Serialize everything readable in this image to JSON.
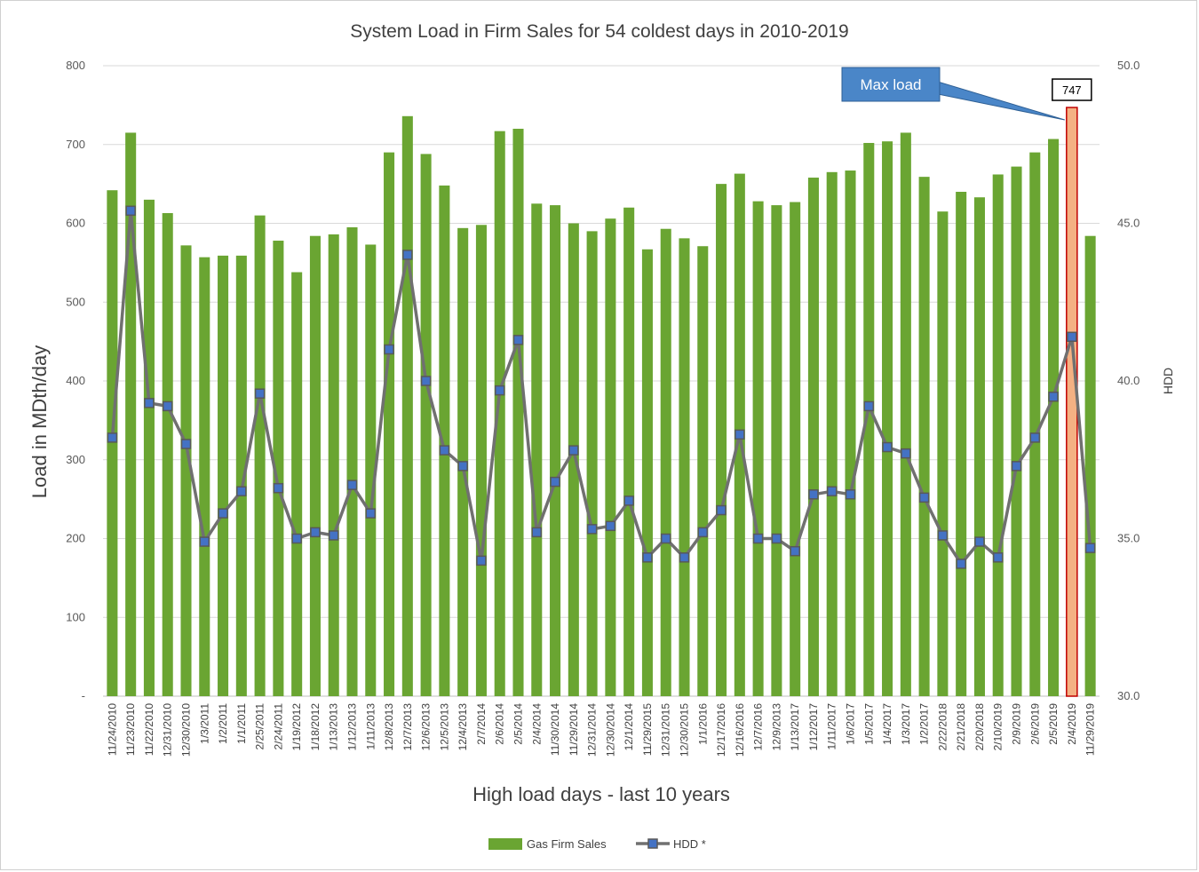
{
  "chart_data": {
    "type": "bar",
    "title": "System Load in Firm Sales for 54 coldest days in 2010-2019",
    "xlabel": "High load days - last 10 years",
    "ylabel": "Load in MDth/day",
    "y2label": "HDD",
    "ylim": [
      0,
      800
    ],
    "y2lim": [
      30.0,
      50.0
    ],
    "y_ticks": [
      "-",
      "100",
      "200",
      "300",
      "400",
      "500",
      "600",
      "700",
      "800"
    ],
    "y2_ticks": [
      "30.0",
      "35.0",
      "40.0",
      "45.0",
      "50.0"
    ],
    "grid": true,
    "legend_position": "bottom",
    "categories": [
      "11/24/2010",
      "11/23/2010",
      "11/22/2010",
      "12/31/2010",
      "12/30/2010",
      "1/3/2011",
      "1/2/2011",
      "1/1/2011",
      "2/25/2011",
      "2/24/2011",
      "1/19/2012",
      "1/18/2012",
      "1/13/2013",
      "1/12/2013",
      "1/11/2013",
      "12/8/2013",
      "12/7/2013",
      "12/6/2013",
      "12/5/2013",
      "12/4/2013",
      "2/7/2014",
      "2/6/2014",
      "2/5/2014",
      "2/4/2014",
      "11/30/2014",
      "11/29/2014",
      "12/31/2014",
      "12/30/2014",
      "12/1/2014",
      "11/29/2015",
      "12/31/2015",
      "12/30/2015",
      "1/1/2016",
      "12/17/2016",
      "12/16/2016",
      "12/7/2016",
      "12/9/2013",
      "1/13/2017",
      "1/12/2017",
      "1/11/2017",
      "1/6/2017",
      "1/5/2017",
      "1/4/2017",
      "1/3/2017",
      "1/2/2017",
      "2/22/2018",
      "2/21/2018",
      "2/20/2018",
      "2/10/2019",
      "2/9/2019",
      "2/6/2019",
      "2/5/2019",
      "2/4/2019",
      "11/29/2019"
    ],
    "series": [
      {
        "name": "Gas Firm Sales",
        "type": "bar",
        "axis": "left",
        "color": "#6aa532",
        "values": [
          642,
          715,
          630,
          613,
          572,
          557,
          559,
          559,
          610,
          578,
          538,
          584,
          586,
          595,
          573,
          690,
          736,
          688,
          648,
          594,
          598,
          717,
          720,
          625,
          623,
          600,
          590,
          606,
          620,
          567,
          593,
          581,
          571,
          650,
          663,
          628,
          623,
          627,
          658,
          665,
          667,
          702,
          704,
          715,
          659,
          615,
          640,
          633,
          662,
          672,
          690,
          707,
          747,
          584
        ]
      },
      {
        "name": "HDD *",
        "type": "line",
        "axis": "right",
        "color": "#707070",
        "marker_color": "#4472c4",
        "values": [
          38.2,
          45.4,
          39.3,
          39.2,
          38.0,
          34.9,
          35.8,
          36.5,
          39.6,
          36.6,
          35.0,
          35.2,
          35.1,
          36.7,
          35.8,
          41.0,
          44.0,
          40.0,
          37.8,
          37.3,
          34.3,
          39.7,
          41.3,
          35.2,
          36.8,
          37.8,
          35.3,
          35.4,
          36.2,
          34.4,
          35.0,
          34.4,
          35.2,
          35.9,
          38.3,
          35.0,
          35.0,
          34.6,
          36.4,
          36.5,
          36.4,
          39.2,
          37.9,
          37.7,
          36.3,
          35.1,
          34.2,
          34.9,
          34.4,
          37.3,
          38.2,
          39.5,
          41.4,
          34.7
        ]
      }
    ],
    "highlight": {
      "index": 52,
      "color": "#f4b183",
      "value_label": "747",
      "callout_text": "Max load",
      "callout_color": "#4a86c8"
    }
  }
}
